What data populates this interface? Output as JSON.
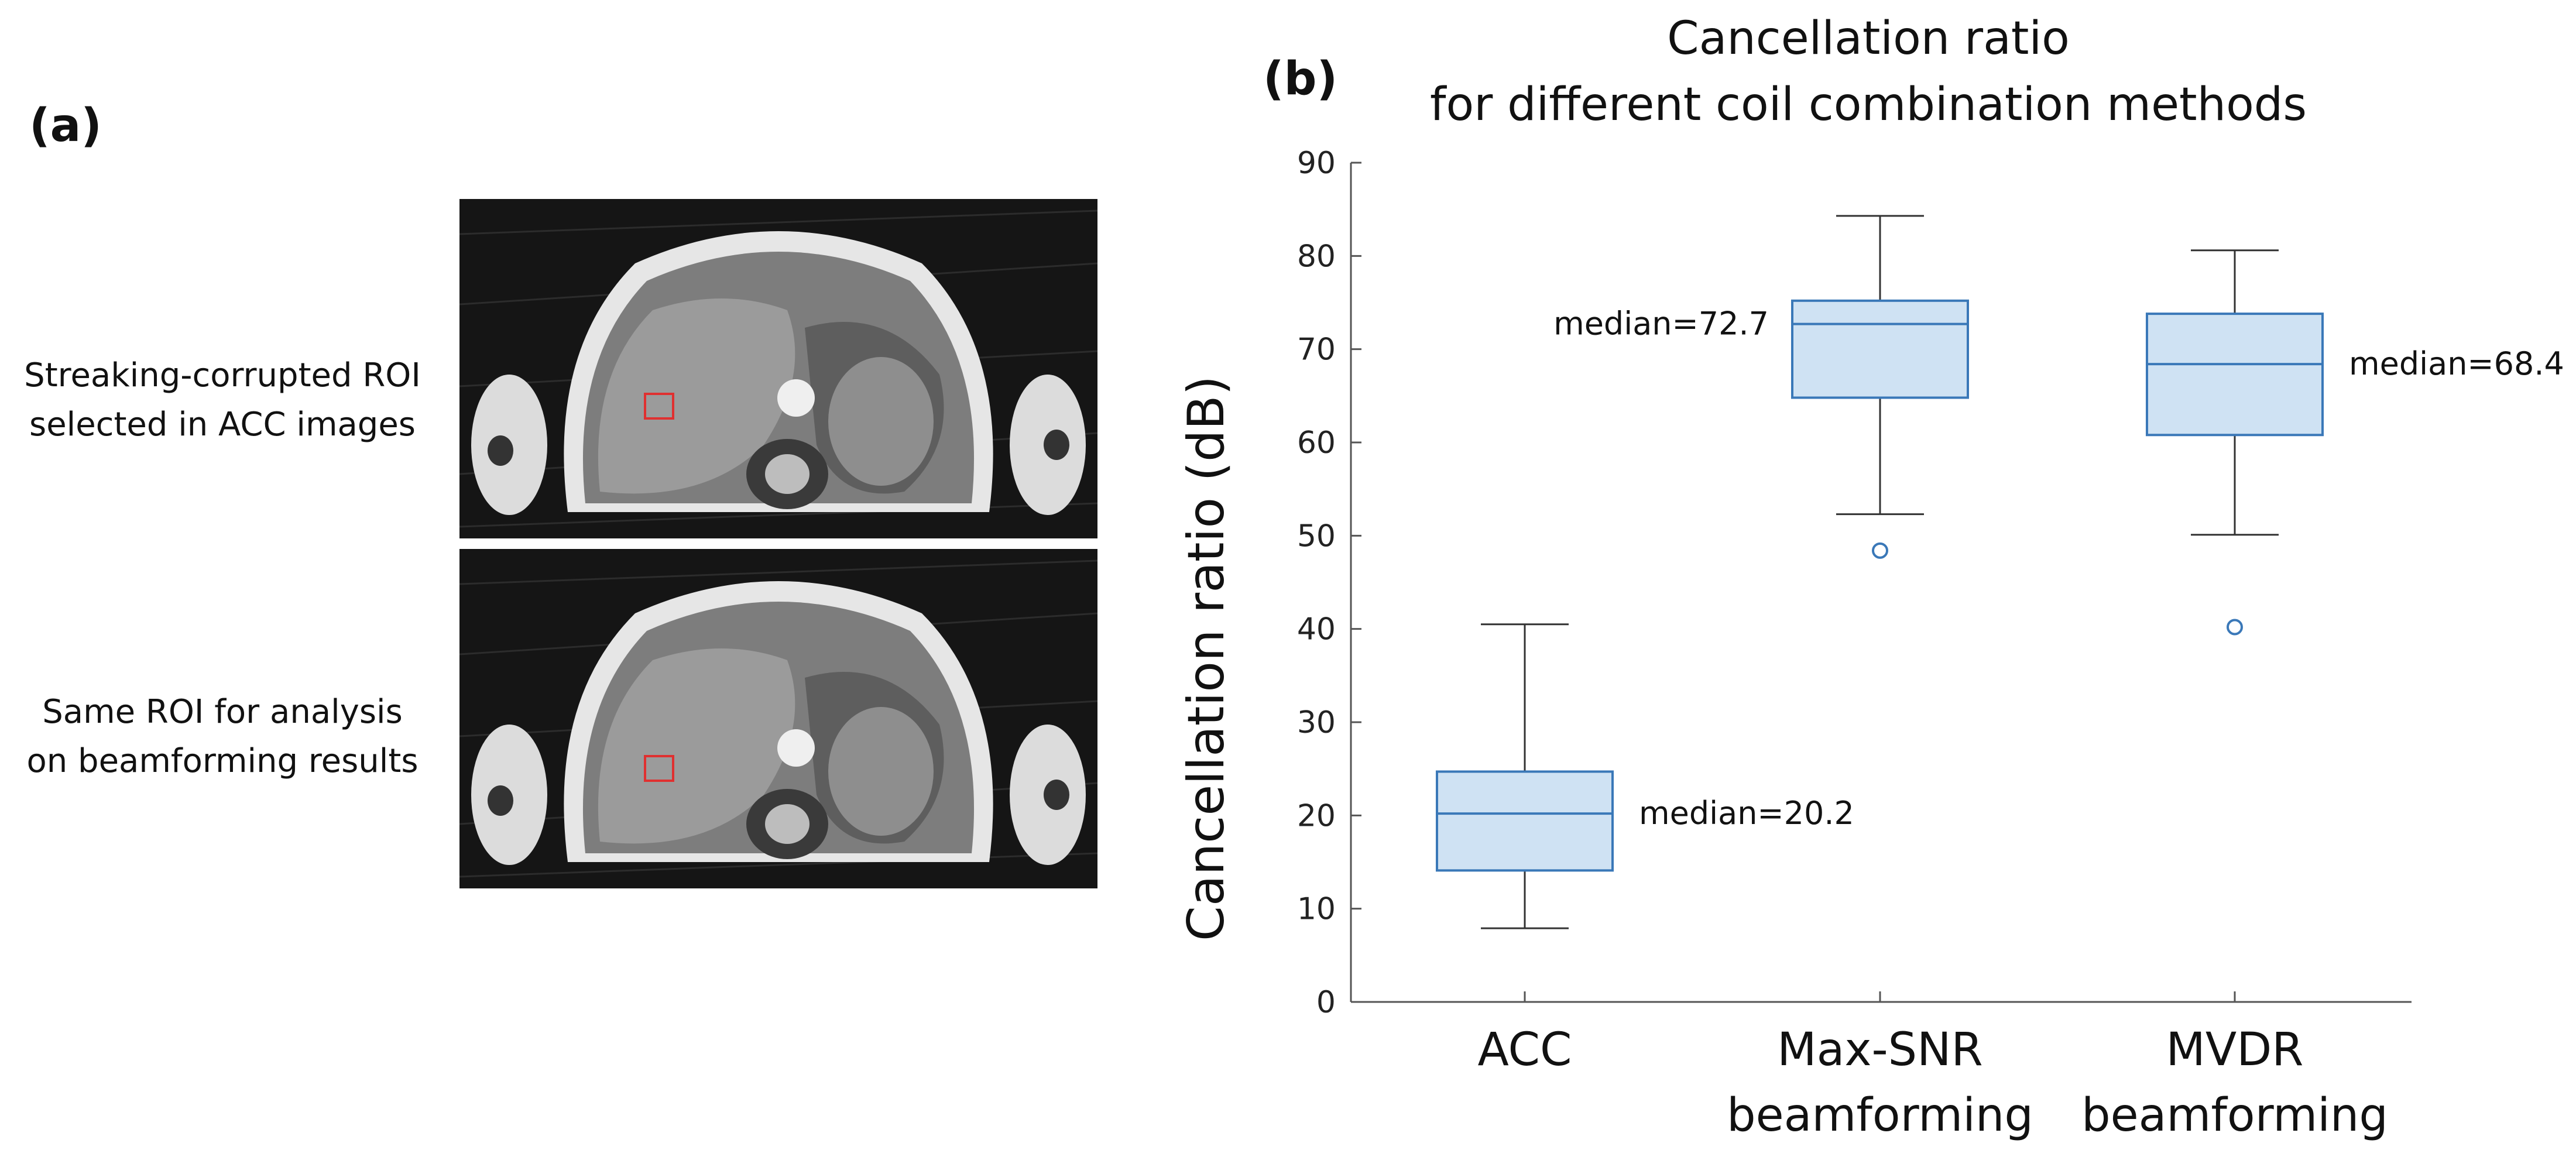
{
  "panel_a": {
    "label": "(a)",
    "top_caption": [
      "Streaking-corrupted ROI",
      "selected in ACC images"
    ],
    "bottom_caption": [
      "Same ROI for analysis",
      "on beamforming results"
    ]
  },
  "panel_b": {
    "label": "(b)"
  },
  "chart_data": {
    "type": "box",
    "title": [
      "Cancellation ratio",
      "for different coil combination methods"
    ],
    "xlabel": "",
    "ylabel": "Cancellation ratio (dB)",
    "ylim": [
      0,
      90
    ],
    "yticks": [
      0,
      10,
      20,
      30,
      40,
      50,
      60,
      70,
      80,
      90
    ],
    "grid": false,
    "categories": [
      [
        "ACC"
      ],
      [
        "Max-SNR",
        "beamforming"
      ],
      [
        "MVDR",
        "beamforming"
      ]
    ],
    "boxes": [
      {
        "name": "ACC",
        "min": 7.9,
        "q1": 14.1,
        "median": 20.2,
        "q3": 24.7,
        "max": 40.5,
        "outliers": [],
        "median_label": "median=20.2",
        "label_side": "right"
      },
      {
        "name": "Max-SNR beamforming",
        "min": 52.3,
        "q1": 64.8,
        "median": 72.7,
        "q3": 75.2,
        "max": 84.3,
        "outliers": [
          48.4
        ],
        "median_label": "median=72.7",
        "label_side": "left"
      },
      {
        "name": "MVDR beamforming",
        "min": 50.1,
        "q1": 60.8,
        "median": 68.4,
        "q3": 73.8,
        "max": 80.6,
        "outliers": [
          40.2
        ],
        "median_label": "median=68.4",
        "label_side": "right"
      }
    ],
    "colors": {
      "box_fill": "#cfe2f3",
      "box_edge": "#3a78b8",
      "whisker": "#333333",
      "axis": "#555555"
    }
  }
}
